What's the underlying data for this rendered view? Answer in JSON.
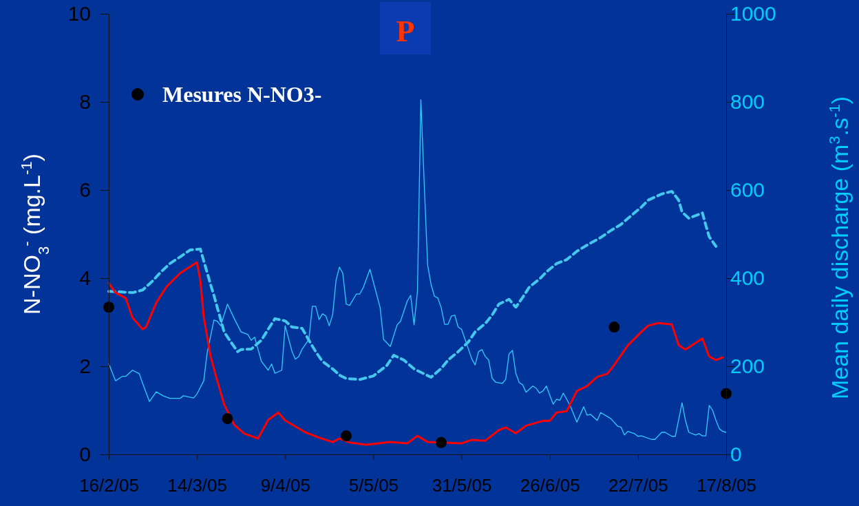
{
  "chart_data": {
    "type": "line",
    "title": "P",
    "ylabel": "N-NO$_{3}$$^{-}$ (mg.L$^{-1}$)",
    "y2label": "Mean daily discharge (m$^{3}$.s$^{-1}$)",
    "xlim": [
      "2005-02-16",
      "2005-08-17"
    ],
    "xticks": [
      {
        "value": "2005-02-16",
        "label": "16/2/05"
      },
      {
        "value": "2005-03-14",
        "label": "14/3/05"
      },
      {
        "value": "2005-04-09",
        "label": "9/4/05"
      },
      {
        "value": "2005-05-05",
        "label": "5/5/05"
      },
      {
        "value": "2005-05-31",
        "label": "31/5/05"
      },
      {
        "value": "2005-06-26",
        "label": "26/6/05"
      },
      {
        "value": "2005-07-22",
        "label": "22/7/05"
      },
      {
        "value": "2005-08-17",
        "label": "17/8/05"
      }
    ],
    "ylim": [
      0,
      10
    ],
    "yticks": [
      0,
      2,
      4,
      6,
      8,
      10
    ],
    "y2lim": [
      0,
      1000
    ],
    "y2ticks": [
      0,
      200,
      400,
      600,
      800,
      1000
    ],
    "grid": false,
    "legend": "top left",
    "series": [
      {
        "axis": "y2",
        "color": "#33ccff",
        "line_style": "solid",
        "x": [
          "2005-02-16",
          "2005-02-18",
          "2005-02-20",
          "2005-02-21",
          "2005-02-23",
          "2005-02-25",
          "2005-02-26",
          "2005-02-28",
          "2005-03-02",
          "2005-03-04",
          "2005-03-06",
          "2005-03-09",
          "2005-03-10",
          "2005-03-13",
          "2005-03-14",
          "2005-03-16",
          "2005-03-17",
          "2005-03-19",
          "2005-03-20",
          "2005-03-21",
          "2005-03-23",
          "2005-03-25",
          "2005-03-27",
          "2005-03-29",
          "2005-03-30",
          "2005-03-31",
          "2005-04-02",
          "2005-04-04",
          "2005-04-05",
          "2005-04-06",
          "2005-04-08",
          "2005-04-09",
          "2005-04-11",
          "2005-04-12",
          "2005-04-13",
          "2005-04-14",
          "2005-04-16",
          "2005-04-17",
          "2005-04-18",
          "2005-04-19",
          "2005-04-20",
          "2005-04-21",
          "2005-04-22",
          "2005-04-23",
          "2005-04-24",
          "2005-04-25",
          "2005-04-26",
          "2005-04-27",
          "2005-04-28",
          "2005-04-30",
          "2005-05-01",
          "2005-05-02",
          "2005-05-04",
          "2005-05-05",
          "2005-05-07",
          "2005-05-08",
          "2005-05-10",
          "2005-05-12",
          "2005-05-13",
          "2005-05-15",
          "2005-05-16",
          "2005-05-17",
          "2005-05-18",
          "2005-05-19",
          "2005-05-20",
          "2005-05-21",
          "2005-05-22",
          "2005-05-23",
          "2005-05-24",
          "2005-05-25",
          "2005-05-26",
          "2005-05-27",
          "2005-05-28",
          "2005-05-29",
          "2005-05-30",
          "2005-05-31",
          "2005-06-03",
          "2005-06-04",
          "2005-06-05",
          "2005-06-06",
          "2005-06-07",
          "2005-06-08",
          "2005-06-09",
          "2005-06-10",
          "2005-06-12",
          "2005-06-13",
          "2005-06-14",
          "2005-06-15",
          "2005-06-16",
          "2005-06-17",
          "2005-06-18",
          "2005-06-19",
          "2005-06-21",
          "2005-06-22",
          "2005-06-23",
          "2005-06-24",
          "2005-06-25",
          "2005-06-27",
          "2005-06-28",
          "2005-06-29",
          "2005-06-30",
          "2005-07-02",
          "2005-07-04",
          "2005-07-06",
          "2005-07-07",
          "2005-07-08",
          "2005-07-10",
          "2005-07-11",
          "2005-07-14",
          "2005-07-16",
          "2005-07-17",
          "2005-07-18",
          "2005-07-19",
          "2005-07-21",
          "2005-07-22",
          "2005-07-23",
          "2005-07-26",
          "2005-07-27",
          "2005-07-28",
          "2005-07-29",
          "2005-07-30",
          "2005-08-01",
          "2005-08-02",
          "2005-08-04",
          "2005-08-05",
          "2005-08-06",
          "2005-08-08",
          "2005-08-09",
          "2005-08-10",
          "2005-08-11",
          "2005-08-12",
          "2005-08-13",
          "2005-08-14",
          "2005-08-15",
          "2005-08-16",
          "2005-08-17"
        ],
        "values": [
          206,
          167,
          177,
          177,
          191,
          183,
          161,
          120,
          142,
          133,
          127,
          127,
          133,
          128,
          137,
          167,
          230,
          305,
          302,
          292,
          341,
          308,
          278,
          272,
          259,
          266,
          211,
          191,
          205,
          184,
          191,
          292,
          234,
          216,
          222,
          239,
          261,
          336,
          336,
          306,
          319,
          314,
          292,
          317,
          395,
          425,
          411,
          341,
          338,
          364,
          364,
          378,
          420,
          391,
          333,
          261,
          245,
          294,
          302,
          348,
          361,
          294,
          370,
          805,
          613,
          430,
          386,
          359,
          355,
          333,
          295,
          295,
          314,
          316,
          289,
          284,
          217,
          203,
          233,
          238,
          222,
          214,
          173,
          164,
          161,
          170,
          228,
          236,
          184,
          163,
          158,
          141,
          155,
          150,
          139,
          144,
          155,
          114,
          125,
          123,
          139,
          111,
          73,
          108,
          89,
          91,
          77,
          95,
          81,
          64,
          62,
          44,
          52,
          47,
          41,
          42,
          34,
          34,
          42,
          50,
          50,
          41,
          41,
          117,
          77,
          50,
          44,
          47,
          42,
          42,
          111,
          100,
          77,
          58,
          52,
          50
        ]
      },
      {
        "axis": "y2",
        "color": "#44c8ee",
        "line_style": "dashed",
        "x": [
          "2005-02-16",
          "2005-02-19",
          "2005-02-23",
          "2005-02-26",
          "2005-03-01",
          "2005-03-03",
          "2005-03-06",
          "2005-03-09",
          "2005-03-12",
          "2005-03-15",
          "2005-03-16",
          "2005-03-17",
          "2005-03-18",
          "2005-03-19",
          "2005-03-20",
          "2005-03-21",
          "2005-03-22",
          "2005-03-24",
          "2005-03-26",
          "2005-03-27",
          "2005-03-30",
          "2005-04-02",
          "2005-04-04",
          "2005-04-06",
          "2005-04-09",
          "2005-04-11",
          "2005-04-14",
          "2005-04-16",
          "2005-04-18",
          "2005-04-20",
          "2005-04-23",
          "2005-04-25",
          "2005-04-27",
          "2005-05-01",
          "2005-05-05",
          "2005-05-09",
          "2005-05-11",
          "2005-05-14",
          "2005-05-17",
          "2005-05-22",
          "2005-05-25",
          "2005-05-27",
          "2005-05-30",
          "2005-06-02",
          "2005-06-04",
          "2005-06-07",
          "2005-06-09",
          "2005-06-11",
          "2005-06-14",
          "2005-06-16",
          "2005-06-18",
          "2005-06-20",
          "2005-06-23",
          "2005-06-25",
          "2005-06-28",
          "2005-07-01",
          "2005-07-04",
          "2005-07-07",
          "2005-07-11",
          "2005-07-14",
          "2005-07-17",
          "2005-07-20",
          "2005-07-23",
          "2005-07-25",
          "2005-07-29",
          "2005-08-01",
          "2005-08-03",
          "2005-08-04",
          "2005-08-06",
          "2005-08-10",
          "2005-08-11",
          "2005-08-12",
          "2005-08-14"
        ],
        "values": [
          370,
          369,
          367,
          373,
          394,
          411,
          433,
          448,
          464,
          466,
          439,
          413,
          386,
          361,
          333,
          306,
          278,
          255,
          233,
          238,
          239,
          259,
          284,
          308,
          303,
          289,
          286,
          259,
          233,
          211,
          194,
          180,
          172,
          170,
          178,
          202,
          225,
          214,
          194,
          175,
          195,
          214,
          233,
          255,
          278,
          297,
          316,
          341,
          352,
          334,
          356,
          380,
          398,
          414,
          433,
          442,
          461,
          475,
          492,
          508,
          522,
          542,
          561,
          577,
          591,
          597,
          577,
          550,
          536,
          548,
          520,
          494,
          472
        ]
      },
      {
        "axis": "y",
        "color": "#ff0000",
        "line_style": "solid",
        "x": [
          "2005-02-16",
          "2005-02-18",
          "2005-02-21",
          "2005-02-23",
          "2005-02-26",
          "2005-02-27",
          "2005-03-02",
          "2005-03-05",
          "2005-03-09",
          "2005-03-14",
          "2005-03-15",
          "2005-03-16",
          "2005-03-18",
          "2005-03-20",
          "2005-03-22",
          "2005-03-25",
          "2005-03-28",
          "2005-04-01",
          "2005-04-04",
          "2005-04-07",
          "2005-04-09",
          "2005-04-13",
          "2005-04-15",
          "2005-04-19",
          "2005-04-23",
          "2005-04-25",
          "2005-04-28",
          "2005-05-03",
          "2005-05-10",
          "2005-05-15",
          "2005-05-18",
          "2005-05-21",
          "2005-05-31",
          "2005-06-03",
          "2005-06-07",
          "2005-06-11",
          "2005-06-13",
          "2005-06-16",
          "2005-06-19",
          "2005-06-24",
          "2005-06-26",
          "2005-06-28",
          "2005-07-01",
          "2005-07-04",
          "2005-07-07",
          "2005-07-10",
          "2005-07-13",
          "2005-07-15",
          "2005-07-19",
          "2005-07-23",
          "2005-07-25",
          "2005-07-28",
          "2005-08-01",
          "2005-08-03",
          "2005-08-05",
          "2005-08-10",
          "2005-08-12",
          "2005-08-14",
          "2005-08-16"
        ],
        "values": [
          3.89,
          3.67,
          3.55,
          3.1,
          2.84,
          2.89,
          3.44,
          3.8,
          4.11,
          4.36,
          3.95,
          3.12,
          2.23,
          1.67,
          1.14,
          0.67,
          0.47,
          0.36,
          0.78,
          0.95,
          0.77,
          0.59,
          0.5,
          0.38,
          0.28,
          0.36,
          0.27,
          0.22,
          0.28,
          0.25,
          0.42,
          0.28,
          0.25,
          0.33,
          0.31,
          0.55,
          0.61,
          0.48,
          0.65,
          0.76,
          0.76,
          0.95,
          0.98,
          1.44,
          1.55,
          1.76,
          1.83,
          2.03,
          2.47,
          2.78,
          2.92,
          2.98,
          2.95,
          2.48,
          2.38,
          2.63,
          2.22,
          2.14,
          2.2
        ]
      },
      {
        "type": "scatter",
        "name": "Mesures N-NO3-",
        "axis": "y",
        "color": "#000000",
        "marker": "circle",
        "x": [
          "2005-02-16",
          "2005-03-23",
          "2005-04-27",
          "2005-05-25",
          "2005-07-15",
          "2005-08-17"
        ],
        "values": [
          3.34,
          0.81,
          0.42,
          0.27,
          2.89,
          1.38
        ]
      }
    ]
  }
}
